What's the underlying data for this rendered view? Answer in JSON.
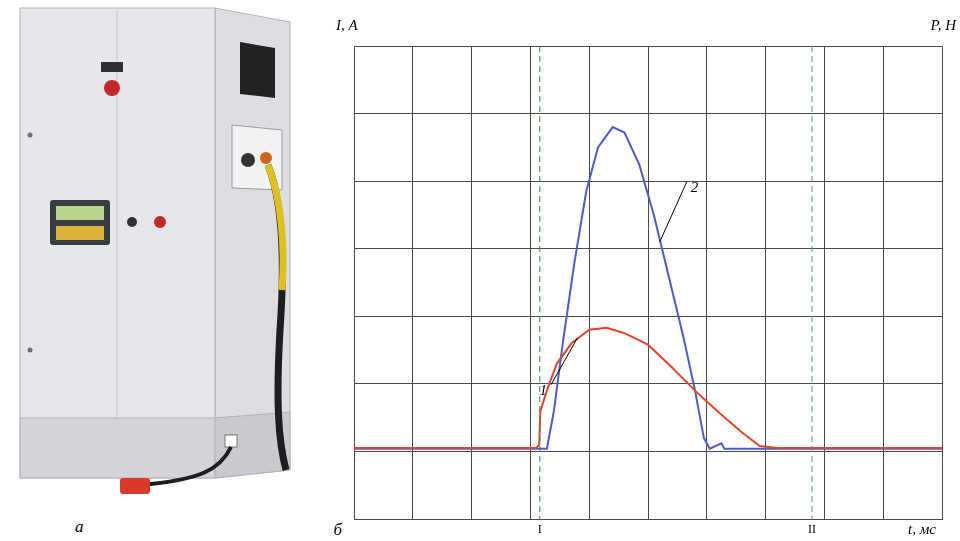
{
  "photo": {
    "label": "а"
  },
  "chart_data": {
    "type": "line",
    "panel_label": "б",
    "x_label": "t, мс",
    "y_label": "I, A",
    "y2_label": "P, H",
    "xlim": [
      0,
      10
    ],
    "xticks": [
      0,
      1,
      2,
      3,
      4,
      5,
      6,
      7,
      8,
      9,
      10
    ],
    "ylim": [
      0,
      7
    ],
    "yticks": [
      0,
      1,
      2,
      3,
      4,
      5,
      6,
      7
    ],
    "y2lim": [
      0,
      7
    ],
    "y2ticks": [
      0,
      1,
      2,
      3,
      4,
      5,
      6,
      7
    ],
    "grid": true,
    "tick_labels": false,
    "series": [
      {
        "name": "1",
        "color": "#e0452a",
        "marker": "none",
        "line_style": "solid",
        "x": [
          0,
          3.1,
          3.15,
          3.17,
          3.3,
          3.45,
          3.7,
          4.0,
          4.3,
          4.6,
          5.0,
          5.4,
          5.8,
          6.2,
          6.6,
          6.9,
          7.2,
          10
        ],
        "values": [
          1.05,
          1.05,
          1.1,
          1.6,
          1.95,
          2.3,
          2.6,
          2.8,
          2.83,
          2.75,
          2.58,
          2.25,
          1.9,
          1.58,
          1.28,
          1.08,
          1.05,
          1.05
        ]
      },
      {
        "name": "2",
        "color": "#4a5cc8",
        "marker": "none",
        "line_style": "solid",
        "axis": "y2",
        "x": [
          0,
          3.28,
          3.4,
          3.55,
          3.75,
          3.95,
          4.15,
          4.4,
          4.6,
          4.85,
          5.1,
          5.35,
          5.6,
          5.8,
          5.95,
          6.05,
          6.25,
          6.3,
          10
        ],
        "values": [
          1.04,
          1.04,
          1.6,
          2.6,
          3.8,
          4.85,
          5.5,
          5.8,
          5.72,
          5.25,
          4.5,
          3.6,
          2.7,
          1.9,
          1.2,
          1.04,
          1.12,
          1.04,
          1.04
        ]
      }
    ],
    "vlines": [
      {
        "value": 3.16,
        "label": "I",
        "color": "#3a8a3a"
      },
      {
        "value": 7.79,
        "label": "II",
        "color": "#5a8ab0"
      }
    ],
    "annotations": [
      {
        "text": "1",
        "x": 3.25,
        "y": 1.9,
        "target_x": 3.8,
        "target_y": 2.68
      },
      {
        "text": "2",
        "x": 5.76,
        "y": 4.9,
        "target_x": 5.2,
        "target_y": 4.1
      }
    ]
  }
}
